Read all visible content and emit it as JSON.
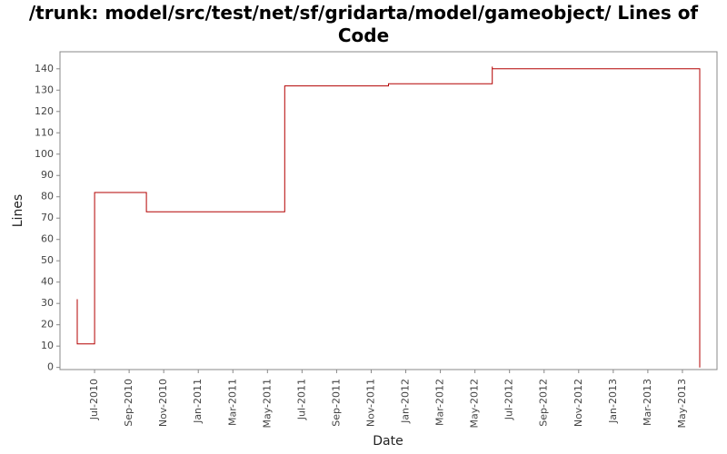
{
  "chart_data": {
    "type": "step",
    "title": "/trunk: model/src/test/net/sf/gridarta/model/gameobject/ Lines of Code",
    "x_label": "Date",
    "y_label": "Lines",
    "x": [
      "2010-06",
      "2010-06",
      "2010-07",
      "2010-10",
      "2011-06",
      "2011-12",
      "2012-06",
      "2012-06",
      "2013-06"
    ],
    "series": [
      {
        "name": "Lines",
        "color": "#b30000",
        "values": [
          32,
          11,
          82,
          73,
          132,
          133,
          141,
          140,
          0
        ]
      }
    ],
    "xlim": [
      "2010-05",
      "2013-07"
    ],
    "xticks": [
      {
        "value": "2010-07",
        "label": "Jul-2010"
      },
      {
        "value": "2010-09",
        "label": "Sep-2010"
      },
      {
        "value": "2010-11",
        "label": "Nov-2010"
      },
      {
        "value": "2011-01",
        "label": "Jan-2011"
      },
      {
        "value": "2011-03",
        "label": "Mar-2011"
      },
      {
        "value": "2011-05",
        "label": "May-2011"
      },
      {
        "value": "2011-07",
        "label": "Jul-2011"
      },
      {
        "value": "2011-09",
        "label": "Sep-2011"
      },
      {
        "value": "2011-11",
        "label": "Nov-2011"
      },
      {
        "value": "2012-01",
        "label": "Jan-2012"
      },
      {
        "value": "2012-03",
        "label": "Mar-2012"
      },
      {
        "value": "2012-05",
        "label": "May-2012"
      },
      {
        "value": "2012-07",
        "label": "Jul-2012"
      },
      {
        "value": "2012-09",
        "label": "Sep-2012"
      },
      {
        "value": "2012-11",
        "label": "Nov-2012"
      },
      {
        "value": "2013-01",
        "label": "Jan-2013"
      },
      {
        "value": "2013-03",
        "label": "Mar-2013"
      },
      {
        "value": "2013-05",
        "label": "May-2013"
      }
    ],
    "ylim": [
      -1,
      148
    ],
    "yticks": [
      0,
      10,
      20,
      30,
      40,
      50,
      60,
      70,
      80,
      90,
      100,
      110,
      120,
      130,
      140
    ],
    "grid": false
  }
}
